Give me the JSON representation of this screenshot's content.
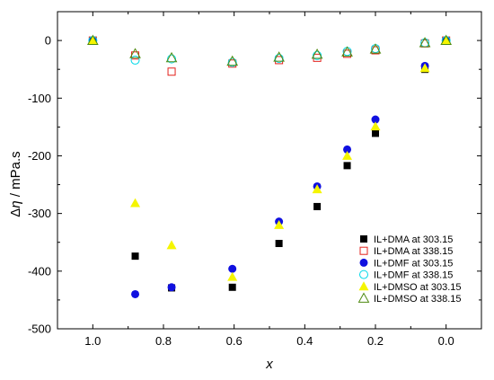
{
  "chart_data": {
    "type": "scatter",
    "title": "",
    "xlabel": "x",
    "ylabel_main": "Δ",
    "ylabel_symbol": "η",
    "ylabel_unit": " / mPa.s",
    "xlim": [
      1.1,
      -0.1
    ],
    "ylim": [
      -500,
      50
    ],
    "x_ticks": [
      1.0,
      0.8,
      0.6,
      0.4,
      0.2,
      0.0
    ],
    "x_tick_labels": [
      "1.0",
      "0.8",
      "0.6",
      "0.4",
      "0.2",
      "0.0"
    ],
    "y_ticks": [
      0,
      -100,
      -200,
      -300,
      -400,
      -500
    ],
    "y_tick_labels": [
      "0",
      "-100",
      "-200",
      "-300",
      "-400",
      "-500"
    ],
    "grid": false,
    "legend_position": "bottom-right",
    "series": [
      {
        "name": "IL+DMA at 303.15",
        "marker": "square",
        "filled": true,
        "color": "#000000",
        "x": [
          1.0,
          0.88,
          0.777,
          0.605,
          0.473,
          0.365,
          0.28,
          0.2,
          0.06,
          0.0
        ],
        "y": [
          0,
          -374,
          -429,
          -428,
          -352,
          -288,
          -217,
          -161,
          -50,
          0
        ]
      },
      {
        "name": "IL+DMA at 338.15",
        "marker": "square",
        "filled": false,
        "color": "#e3211c",
        "x": [
          1.0,
          0.88,
          0.777,
          0.605,
          0.473,
          0.365,
          0.28,
          0.2,
          0.06,
          0.0
        ],
        "y": [
          0,
          -26,
          -54,
          -40,
          -34,
          -30,
          -23,
          -17,
          -5,
          0
        ]
      },
      {
        "name": "IL+DMF at 303.15",
        "marker": "circle",
        "filled": true,
        "color": "#1010e0",
        "x": [
          1.0,
          0.88,
          0.777,
          0.605,
          0.473,
          0.365,
          0.28,
          0.2,
          0.06,
          0.0
        ],
        "y": [
          0,
          -440,
          -428,
          -396,
          -314,
          -253,
          -189,
          -137,
          -44,
          0
        ]
      },
      {
        "name": "IL+DMF at 338.15",
        "marker": "circle",
        "filled": false,
        "color": "#00d8e8",
        "x": [
          1.0,
          0.88,
          0.777,
          0.605,
          0.473,
          0.365,
          0.28,
          0.2,
          0.06,
          0.0
        ],
        "y": [
          0,
          -34,
          -32,
          -38,
          -31,
          -26,
          -19,
          -14,
          -4,
          0
        ]
      },
      {
        "name": "IL+DMSO at 303.15",
        "marker": "triangle",
        "filled": true,
        "color": "#f5f500",
        "x": [
          1.0,
          0.88,
          0.777,
          0.605,
          0.473,
          0.365,
          0.28,
          0.2,
          0.06,
          0.0
        ],
        "y": [
          0,
          -282,
          -355,
          -410,
          -320,
          -258,
          -200,
          -149,
          -48,
          0
        ]
      },
      {
        "name": "IL+DMSO at 338.15",
        "marker": "triangle",
        "filled": false,
        "color": "#4f8a10",
        "x": [
          1.0,
          0.88,
          0.777,
          0.605,
          0.473,
          0.365,
          0.28,
          0.2,
          0.06,
          0.0
        ],
        "y": [
          0,
          -23,
          -30,
          -36,
          -29,
          -24,
          -20,
          -15,
          -4,
          0
        ]
      }
    ]
  }
}
